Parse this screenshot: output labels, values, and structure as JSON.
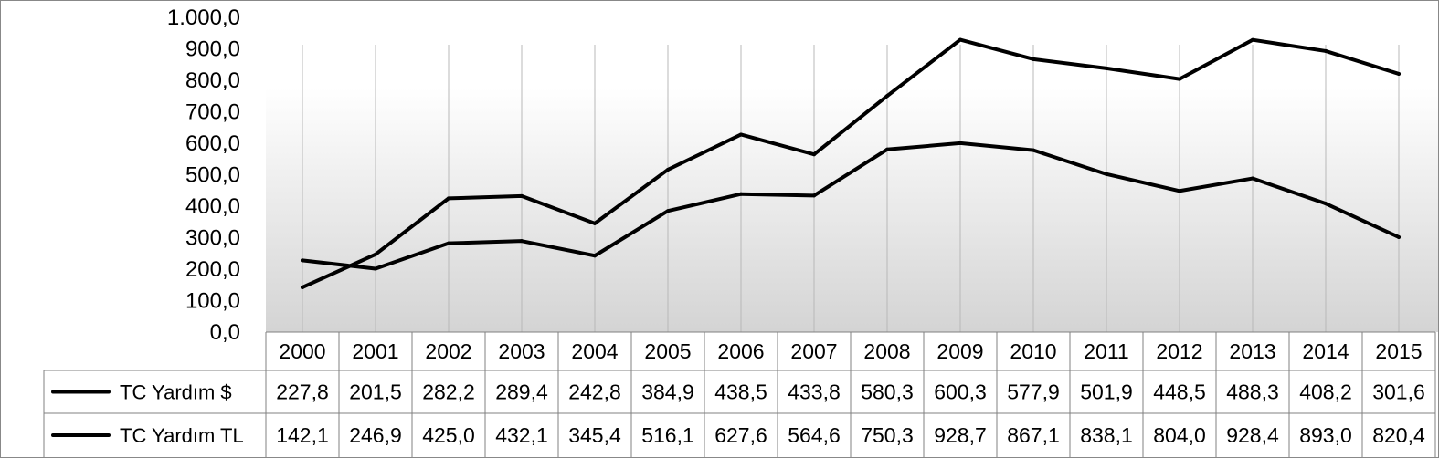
{
  "chart_data": {
    "type": "line",
    "categories": [
      "2000",
      "2001",
      "2002",
      "2003",
      "2004",
      "2005",
      "2006",
      "2007",
      "2008",
      "2009",
      "2010",
      "2011",
      "2012",
      "2013",
      "2014",
      "2015"
    ],
    "series": [
      {
        "name": "TC Yardım $",
        "values": [
          227.8,
          201.5,
          282.2,
          289.4,
          242.8,
          384.9,
          438.5,
          433.8,
          580.3,
          600.3,
          577.9,
          501.9,
          448.5,
          488.3,
          408.2,
          301.6
        ],
        "labels": [
          "227,8",
          "201,5",
          "282,2",
          "289,4",
          "242,8",
          "384,9",
          "438,5",
          "433,8",
          "580,3",
          "600,3",
          "577,9",
          "501,9",
          "448,5",
          "488,3",
          "408,2",
          "301,6"
        ],
        "color": "#000000"
      },
      {
        "name": "TC Yardım TL",
        "values": [
          142.1,
          246.9,
          425.0,
          432.1,
          345.4,
          516.1,
          627.6,
          564.6,
          750.3,
          928.7,
          867.1,
          838.1,
          804.0,
          928.4,
          893.0,
          820.4
        ],
        "labels": [
          "142,1",
          "246,9",
          "425,0",
          "432,1",
          "345,4",
          "516,1",
          "627,6",
          "564,6",
          "750,3",
          "928,7",
          "867,1",
          "838,1",
          "804,0",
          "928,4",
          "893,0",
          "820,4"
        ],
        "color": "#000000"
      }
    ],
    "ylim": [
      0,
      1000
    ],
    "yticks": [
      0,
      100,
      200,
      300,
      400,
      500,
      600,
      700,
      800,
      900,
      1000
    ],
    "ytick_labels": [
      "0,0",
      "100,0",
      "200,0",
      "300,0",
      "400,0",
      "500,0",
      "600,0",
      "700,0",
      "800,0",
      "900,0",
      "1.000,0"
    ],
    "grid": "vertical",
    "legend": "data-table",
    "background": "gradient-gray"
  }
}
